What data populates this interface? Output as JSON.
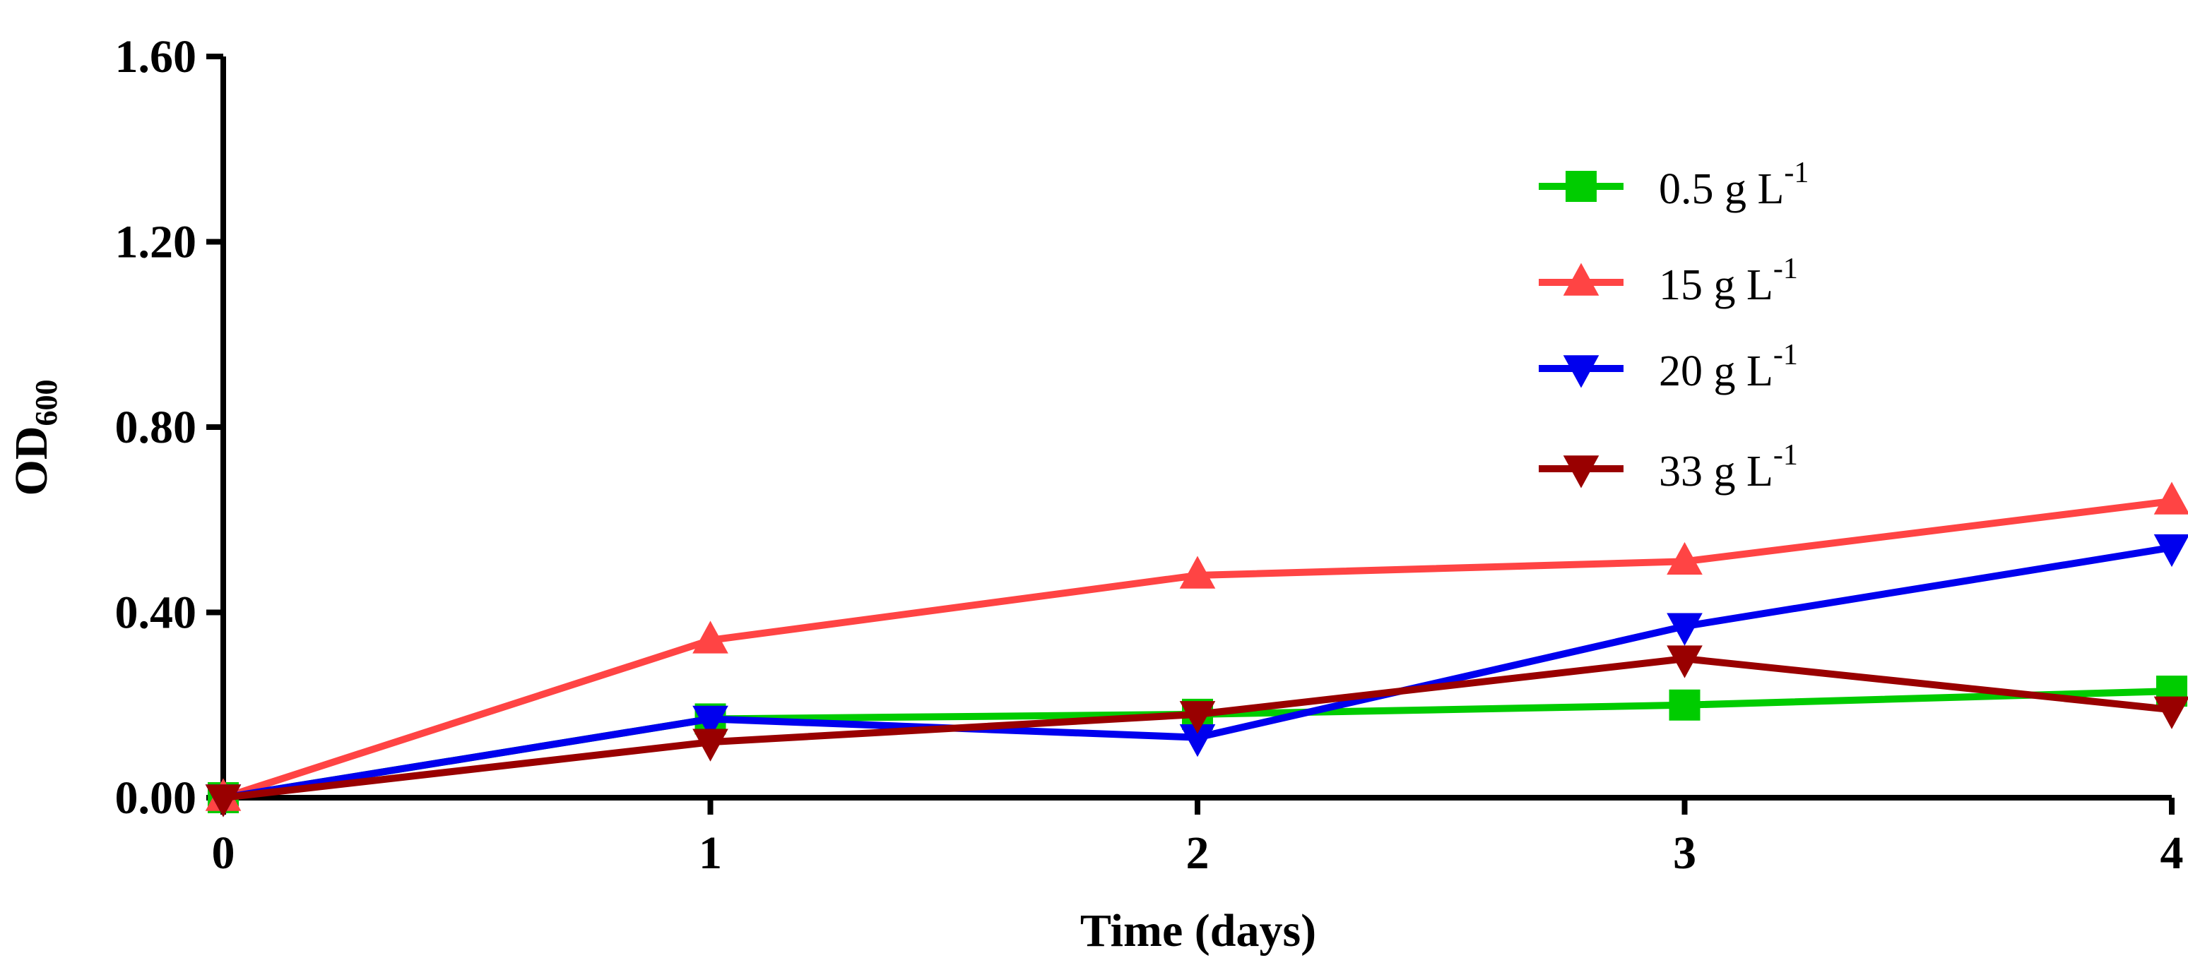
{
  "chart_data": {
    "type": "line",
    "title": "",
    "xlabel": "Time (days)",
    "ylabel_main": "OD",
    "ylabel_sub": "600",
    "x": [
      0,
      1,
      2,
      3,
      4
    ],
    "xlim": [
      0,
      4
    ],
    "ylim": [
      0,
      1.6
    ],
    "x_ticks": [
      "0",
      "1",
      "2",
      "3",
      "4"
    ],
    "y_ticks": [
      "0.00",
      "0.40",
      "0.80",
      "1.20",
      "1.60"
    ],
    "grid": false,
    "legend_position": "top-right",
    "series": [
      {
        "name": "0.5 g L",
        "sup": "-1",
        "color": "#00cc00",
        "marker": "square",
        "values": [
          0.0,
          0.17,
          0.18,
          0.2,
          0.23
        ]
      },
      {
        "name": "15 g L",
        "sup": "-1",
        "color": "#ff4444",
        "marker": "triangle-up",
        "values": [
          0.0,
          0.34,
          0.48,
          0.51,
          0.64
        ]
      },
      {
        "name": "20 g L",
        "sup": "-1",
        "color": "#0000ee",
        "marker": "triangle-down",
        "values": [
          0.0,
          0.17,
          0.13,
          0.37,
          0.54
        ]
      },
      {
        "name": "33 g L",
        "sup": "-1",
        "color": "#990000",
        "marker": "triangle-down",
        "values": [
          0.0,
          0.12,
          0.18,
          0.3,
          0.19
        ]
      }
    ]
  }
}
